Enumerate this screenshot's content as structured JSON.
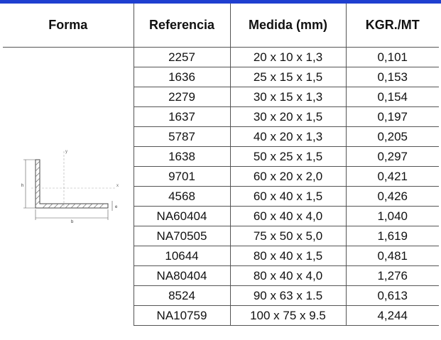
{
  "headers": [
    "Forma",
    "Referencia",
    "Medida (mm)",
    "KGR./MT"
  ],
  "rows": [
    {
      "ref": "2257",
      "medida": "20 x 10 x 1,3",
      "kgr": "0,101"
    },
    {
      "ref": "1636",
      "medida": "25 x 15 x 1,5",
      "kgr": "0,153"
    },
    {
      "ref": "2279",
      "medida": "30 x 15 x 1,3",
      "kgr": "0,154"
    },
    {
      "ref": "1637",
      "medida": "30 x 20 x 1,5",
      "kgr": "0,197"
    },
    {
      "ref": "5787",
      "medida": "40 x 20 x 1,3",
      "kgr": "0,205"
    },
    {
      "ref": "1638",
      "medida": "50 x 25 x 1,5",
      "kgr": "0,297"
    },
    {
      "ref": "9701",
      "medida": "60 x 20 x 2,0",
      "kgr": "0,421"
    },
    {
      "ref": "4568",
      "medida": "60 x 40 x 1,5",
      "kgr": "0,426"
    },
    {
      "ref": "NA60404",
      "medida": "60 x 40 x 4,0",
      "kgr": "1,040"
    },
    {
      "ref": "NA70505",
      "medida": "75 x 50 x 5,0",
      "kgr": "1,619"
    },
    {
      "ref": "10644",
      "medida": "80 x 40 x 1,5",
      "kgr": "0,481"
    },
    {
      "ref": "NA80404",
      "medida": "80 x 40 x 4,0",
      "kgr": "1,276"
    },
    {
      "ref": "8524",
      "medida": "90 x 63 x 1.5",
      "kgr": "0,613"
    },
    {
      "ref": "NA10759",
      "medida": "100 x 75 x 9.5",
      "kgr": "4,244"
    }
  ],
  "drawing": {
    "label_height": "h",
    "label_base": "b",
    "label_thickness": "e",
    "label_axis_x": "x",
    "label_axis_y": "y"
  }
}
